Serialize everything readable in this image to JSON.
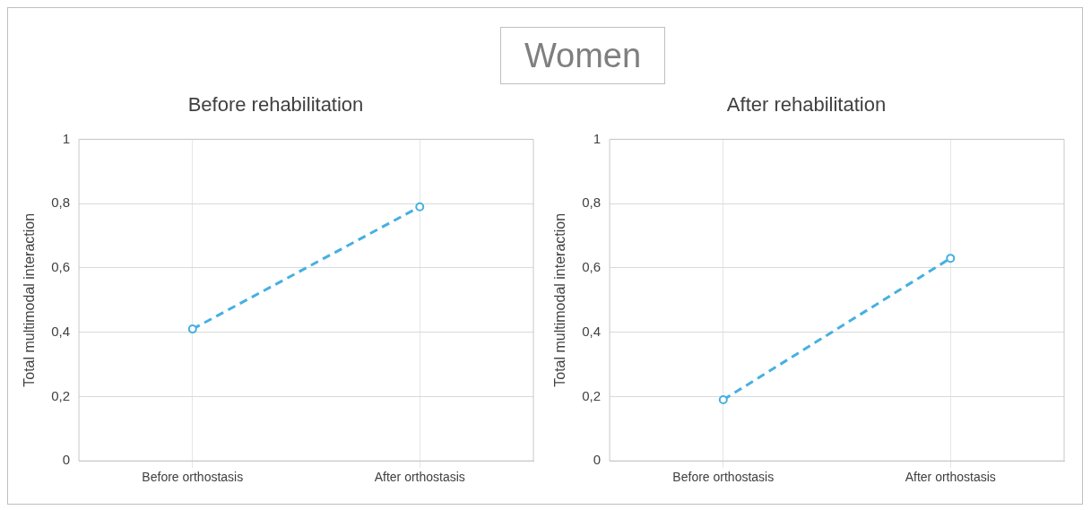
{
  "chart_data": [
    {
      "type": "other",
      "title": "Women"
    },
    {
      "type": "line",
      "title": "Before rehabilitation",
      "ylabel": "Total multimodal interaction",
      "categories": [
        "Before orthostasis",
        "After orthostasis"
      ],
      "series": [
        {
          "color": "#45b0e1",
          "values": [
            0.41,
            0.79
          ]
        }
      ],
      "ylim": [
        0,
        1
      ],
      "yticks": [
        {
          "value": 0,
          "label": "0"
        },
        {
          "value": 0.2,
          "label": "0,2"
        },
        {
          "value": 0.4,
          "label": "0,4"
        },
        {
          "value": 0.6,
          "label": "0,6"
        },
        {
          "value": 0.8,
          "label": "0,8"
        },
        {
          "value": 1,
          "label": "1"
        }
      ],
      "grid": true,
      "legend": false,
      "marker": "circle",
      "line_style": "dashed"
    },
    {
      "type": "line",
      "title": "After rehabilitation",
      "ylabel": "Total multimodal interaction",
      "categories": [
        "Before orthostasis",
        "After orthostasis"
      ],
      "series": [
        {
          "color": "#45b0e1",
          "values": [
            0.19,
            0.63
          ]
        }
      ],
      "ylim": [
        0,
        1
      ],
      "yticks": [
        {
          "value": 0,
          "label": "0"
        },
        {
          "value": 0.2,
          "label": "0,2"
        },
        {
          "value": 0.4,
          "label": "0,4"
        },
        {
          "value": 0.6,
          "label": "0,6"
        },
        {
          "value": 0.8,
          "label": "0,8"
        },
        {
          "value": 1,
          "label": "1"
        }
      ],
      "grid": true,
      "legend": false,
      "marker": "circle",
      "line_style": "dashed"
    }
  ]
}
